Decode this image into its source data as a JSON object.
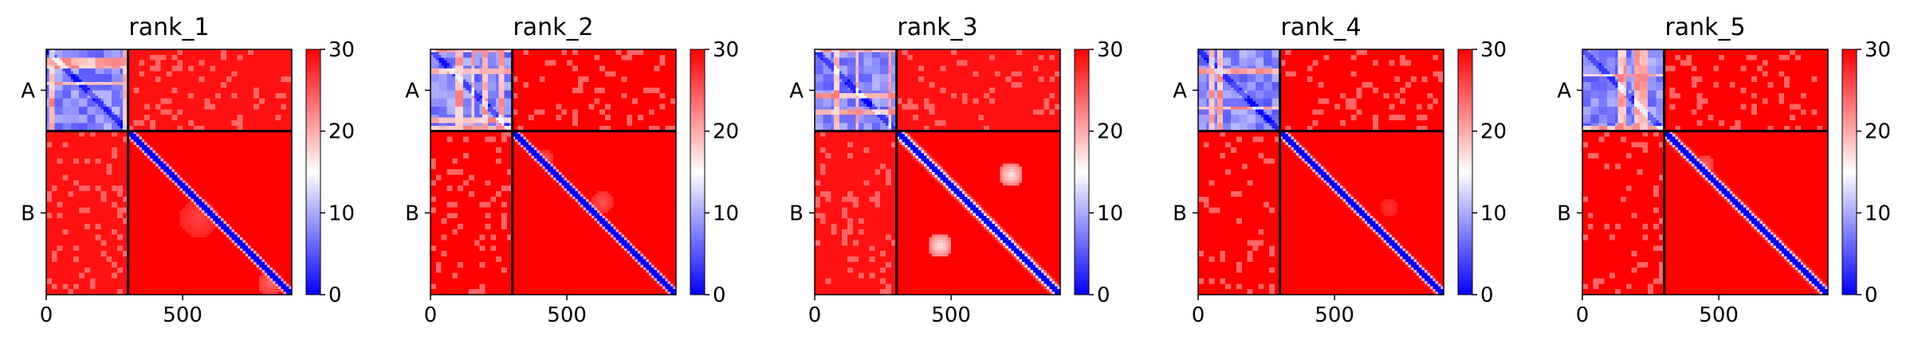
{
  "colors": {
    "low": "#0000ff",
    "mid": "#ffffff",
    "high": "#ff0000",
    "divider": "#000000"
  },
  "chart_data": [
    {
      "type": "heatmap",
      "title": "rank_1",
      "chains": [
        {
          "label": "A",
          "start": 0,
          "end": 300
        },
        {
          "label": "B",
          "start": 300,
          "end": 900
        }
      ],
      "x_ticks": [
        0,
        500
      ],
      "xlim": [
        0,
        900
      ],
      "colorbar": {
        "ticks": [
          0,
          10,
          20,
          30
        ],
        "range": [
          0,
          30
        ],
        "colors": [
          "blue",
          "white",
          "red"
        ]
      },
      "features": {
        "intra_A_level": 5,
        "AB_level": 29,
        "intra_B_level": 30,
        "diagonal_width": 12,
        "secondary_contacts": [
          {
            "center": [
              560,
              620
            ],
            "radius": 70,
            "value": 26
          },
          {
            "center": [
              820,
              860
            ],
            "radius": 45,
            "value": 24
          }
        ]
      }
    },
    {
      "type": "heatmap",
      "title": "rank_2",
      "chains": [
        {
          "label": "A",
          "start": 0,
          "end": 300
        },
        {
          "label": "B",
          "start": 300,
          "end": 900
        }
      ],
      "x_ticks": [
        0,
        500
      ],
      "xlim": [
        0,
        900
      ],
      "colorbar": {
        "ticks": [
          0,
          10,
          20,
          30
        ],
        "range": [
          0,
          30
        ],
        "colors": [
          "blue",
          "white",
          "red"
        ]
      },
      "features": {
        "intra_A_level": 5,
        "AB_level": 30,
        "intra_B_level": 30,
        "diagonal_width": 12,
        "secondary_contacts": [
          {
            "center": [
              420,
              400
            ],
            "radius": 30,
            "value": 25
          },
          {
            "center": [
              630,
              560
            ],
            "radius": 40,
            "value": 25
          }
        ]
      }
    },
    {
      "type": "heatmap",
      "title": "rank_3",
      "chains": [
        {
          "label": "A",
          "start": 0,
          "end": 300
        },
        {
          "label": "B",
          "start": 300,
          "end": 900
        }
      ],
      "x_ticks": [
        0,
        500
      ],
      "xlim": [
        0,
        900
      ],
      "colorbar": {
        "ticks": [
          0,
          10,
          20,
          30
        ],
        "range": [
          0,
          30
        ],
        "colors": [
          "blue",
          "white",
          "red"
        ]
      },
      "features": {
        "intra_A_level": 5,
        "AB_level": 29,
        "intra_B_level": 30,
        "diagonal_width": 16,
        "secondary_contacts": [
          {
            "center": [
              720,
              460
            ],
            "radius": 45,
            "value": 16
          },
          {
            "center": [
              460,
              720
            ],
            "radius": 45,
            "value": 16
          }
        ]
      }
    },
    {
      "type": "heatmap",
      "title": "rank_4",
      "chains": [
        {
          "label": "A",
          "start": 0,
          "end": 300
        },
        {
          "label": "B",
          "start": 300,
          "end": 900
        }
      ],
      "x_ticks": [
        0,
        500
      ],
      "xlim": [
        0,
        900
      ],
      "colorbar": {
        "ticks": [
          0,
          10,
          20,
          30
        ],
        "range": [
          0,
          30
        ],
        "colors": [
          "blue",
          "white",
          "red"
        ]
      },
      "features": {
        "intra_A_level": 5,
        "AB_level": 30,
        "intra_B_level": 30,
        "diagonal_width": 13,
        "secondary_contacts": [
          {
            "center": [
              700,
              580
            ],
            "radius": 35,
            "value": 27
          }
        ]
      }
    },
    {
      "type": "heatmap",
      "title": "rank_5",
      "chains": [
        {
          "label": "A",
          "start": 0,
          "end": 300
        },
        {
          "label": "B",
          "start": 300,
          "end": 900
        }
      ],
      "x_ticks": [
        0,
        500
      ],
      "xlim": [
        0,
        900
      ],
      "colorbar": {
        "ticks": [
          0,
          10,
          20,
          30
        ],
        "range": [
          0,
          30
        ],
        "colors": [
          "blue",
          "white",
          "red"
        ]
      },
      "features": {
        "intra_A_level": 5,
        "AB_level": 30,
        "intra_B_level": 30,
        "diagonal_width": 14,
        "secondary_contacts": [
          {
            "center": [
              450,
              420
            ],
            "radius": 35,
            "value": 24
          }
        ]
      }
    }
  ]
}
